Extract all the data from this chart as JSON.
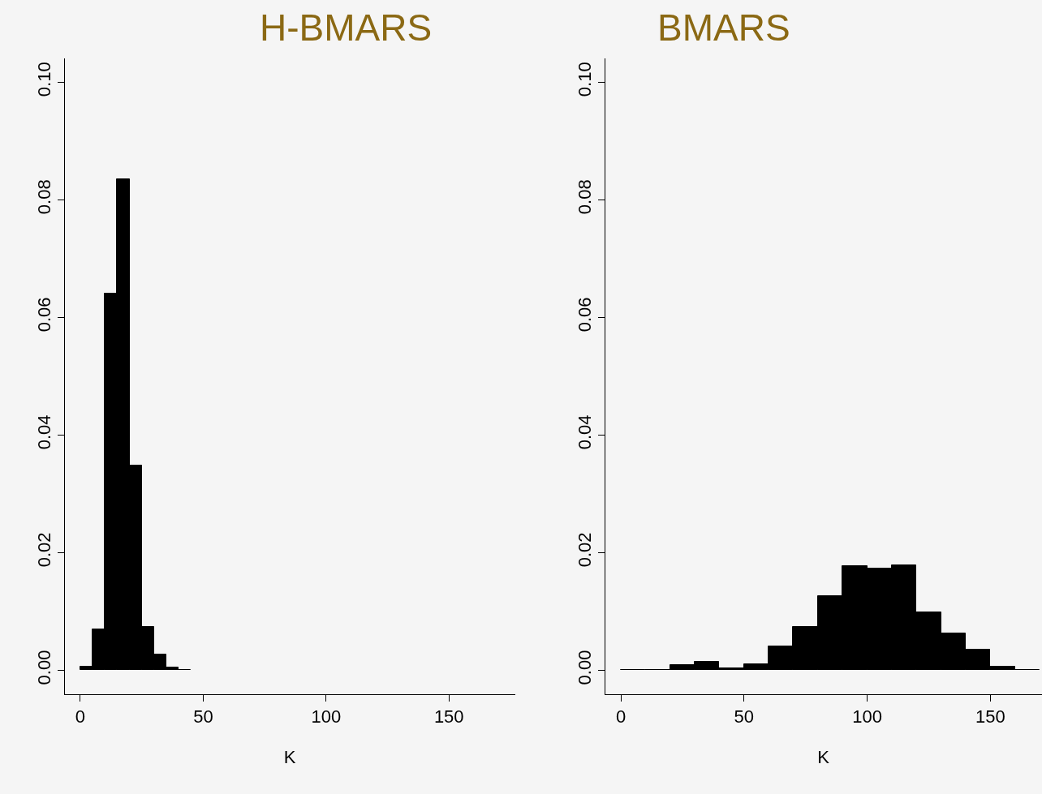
{
  "chart_data": [
    {
      "type": "histogram",
      "title": "H-BMARS",
      "xlabel": "K",
      "color": "#000000",
      "bins": [
        0,
        5,
        10,
        15,
        20,
        25,
        30,
        35,
        40,
        45
      ],
      "values": [
        0.0006,
        0.007,
        0.064,
        0.0834,
        0.0348,
        0.0073,
        0.0026,
        0.0004,
        0.0001
      ],
      "xlim": [
        -6.6,
        177
      ],
      "xticks": [
        0,
        50,
        100,
        150
      ],
      "ylim": [
        -0.0041,
        0.104
      ],
      "yticks": [
        {
          "value": 0,
          "label": "0.00"
        },
        {
          "value": 0.02,
          "label": "0.02"
        },
        {
          "value": 0.04,
          "label": "0.04"
        },
        {
          "value": 0.06,
          "label": "0.06"
        },
        {
          "value": 0.08,
          "label": "0.08"
        },
        {
          "value": 0.1,
          "label": "0.10"
        }
      ],
      "grid": false
    },
    {
      "type": "histogram",
      "title": "BMARS",
      "xlabel": "K",
      "color": "#000000",
      "bins": [
        0,
        10,
        20,
        30,
        40,
        50,
        60,
        70,
        80,
        90,
        100,
        110,
        120,
        130,
        140,
        150,
        160,
        170
      ],
      "values": [
        0.0001,
        0.0001,
        0.0008,
        0.0014,
        0.0003,
        0.001,
        0.004,
        0.0073,
        0.0126,
        0.0177,
        0.0173,
        0.0178,
        0.0098,
        0.0062,
        0.0035,
        0.0006,
        0.0001
      ],
      "xlim": [
        -6.6,
        171
      ],
      "xticks": [
        0,
        50,
        100,
        150
      ],
      "ylim": [
        -0.0041,
        0.104
      ],
      "yticks": [
        {
          "value": 0,
          "label": "0.00"
        },
        {
          "value": 0.02,
          "label": "0.02"
        },
        {
          "value": 0.04,
          "label": "0.04"
        },
        {
          "value": 0.06,
          "label": "0.06"
        },
        {
          "value": 0.08,
          "label": "0.08"
        },
        {
          "value": 0.1,
          "label": "0.10"
        }
      ],
      "grid": false
    }
  ]
}
